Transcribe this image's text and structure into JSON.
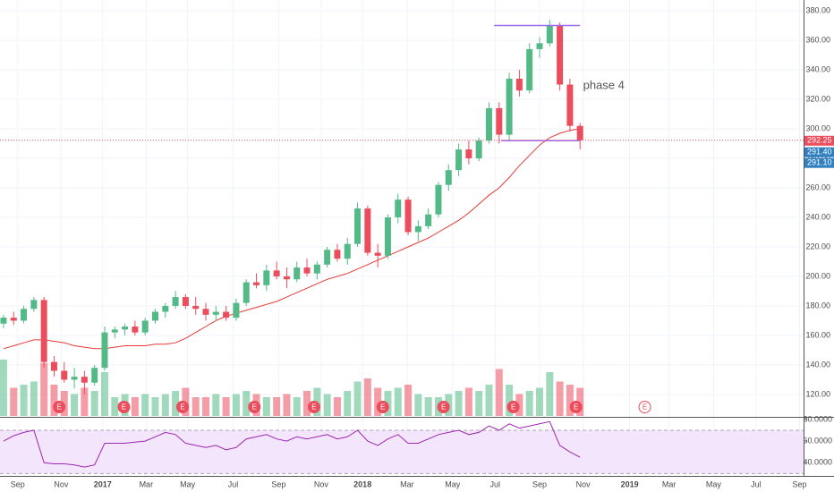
{
  "chart_data": {
    "type": "candlestick",
    "up_color": "#53b987",
    "down_color": "#eb4d5c",
    "open": [
      168,
      172,
      170,
      178,
      184,
      142,
      136,
      130,
      132,
      128,
      138,
      162,
      164,
      166,
      162,
      170,
      176,
      180,
      186,
      180,
      178,
      174,
      176,
      172,
      182,
      196,
      194,
      204,
      200,
      198,
      206,
      202,
      208,
      218,
      212,
      222,
      246,
      216,
      214,
      240,
      252,
      230,
      234,
      242,
      262,
      272,
      286,
      280,
      292,
      314,
      296,
      334,
      326,
      354,
      358,
      370,
      330,
      302
    ],
    "high": [
      174,
      176,
      180,
      186,
      186,
      146,
      142,
      138,
      136,
      140,
      166,
      166,
      168,
      170,
      172,
      178,
      182,
      190,
      188,
      186,
      182,
      180,
      180,
      185,
      198,
      202,
      208,
      210,
      206,
      210,
      212,
      210,
      220,
      222,
      226,
      250,
      248,
      222,
      242,
      256,
      254,
      238,
      246,
      264,
      276,
      290,
      292,
      294,
      318,
      318,
      338,
      340,
      358,
      362,
      374,
      372,
      334,
      304
    ],
    "low": [
      165,
      167,
      168,
      176,
      138,
      132,
      128,
      124,
      120,
      126,
      136,
      158,
      160,
      160,
      160,
      168,
      172,
      178,
      178,
      174,
      170,
      170,
      170,
      170,
      180,
      192,
      190,
      198,
      192,
      196,
      200,
      198,
      206,
      210,
      208,
      220,
      214,
      206,
      212,
      236,
      228,
      224,
      232,
      240,
      258,
      268,
      276,
      278,
      290,
      290,
      292,
      322,
      324,
      348,
      356,
      326,
      298,
      286
    ],
    "close": [
      172,
      170,
      178,
      184,
      142,
      136,
      130,
      132,
      128,
      138,
      162,
      164,
      166,
      162,
      170,
      176,
      180,
      186,
      180,
      178,
      174,
      176,
      172,
      182,
      196,
      194,
      204,
      200,
      198,
      206,
      202,
      208,
      218,
      212,
      222,
      246,
      216,
      214,
      240,
      252,
      230,
      234,
      242,
      262,
      272,
      286,
      280,
      292,
      314,
      296,
      334,
      326,
      354,
      358,
      370,
      330,
      302,
      292.25
    ],
    "volume": [
      90,
      45,
      50,
      55,
      85,
      50,
      40,
      35,
      45,
      40,
      70,
      30,
      35,
      30,
      35,
      30,
      35,
      40,
      45,
      30,
      30,
      35,
      30,
      35,
      40,
      35,
      30,
      30,
      35,
      30,
      40,
      45,
      35,
      30,
      40,
      55,
      60,
      45,
      40,
      45,
      50,
      35,
      30,
      30,
      35,
      40,
      45,
      40,
      50,
      75,
      50,
      35,
      40,
      45,
      70,
      55,
      50,
      45
    ],
    "volume_lim": [
      0,
      100
    ],
    "moving_average": {
      "color": "#e53935",
      "values": [
        151,
        153,
        155,
        157,
        157,
        156,
        155,
        153,
        152,
        151,
        151,
        152,
        153,
        153,
        153,
        154,
        154,
        155,
        158,
        162,
        166,
        170,
        173,
        175,
        177,
        179,
        181,
        183,
        186,
        189,
        192,
        195,
        198,
        200,
        202,
        205,
        208,
        211,
        214,
        217,
        220,
        223,
        226,
        230,
        234,
        238,
        243,
        249,
        255,
        260,
        267,
        275,
        282,
        289,
        294,
        297,
        299,
        300
      ]
    },
    "xlim": [
      -0.35,
      79.1
    ],
    "xticks": [
      {
        "value": 1.4,
        "label": "Sep"
      },
      {
        "value": 5.7,
        "label": "Nov"
      },
      {
        "value": 9.8,
        "label": "2017"
      },
      {
        "value": 14.1,
        "label": "Mar"
      },
      {
        "value": 18.2,
        "label": "May"
      },
      {
        "value": 22.7,
        "label": "Jul"
      },
      {
        "value": 27.2,
        "label": "Sep"
      },
      {
        "value": 31.4,
        "label": "Nov"
      },
      {
        "value": 35.5,
        "label": "2018"
      },
      {
        "value": 39.9,
        "label": "Mar"
      },
      {
        "value": 44.4,
        "label": "May"
      },
      {
        "value": 48.6,
        "label": "Jul"
      },
      {
        "value": 53,
        "label": "Sep"
      },
      {
        "value": 57.3,
        "label": "Nov"
      },
      {
        "value": 61.9,
        "label": "2019"
      },
      {
        "value": 65.8,
        "label": "Mar"
      },
      {
        "value": 70.2,
        "label": "May"
      },
      {
        "value": 74.4,
        "label": "Jul"
      },
      {
        "value": 78.7,
        "label": "Sep"
      }
    ],
    "ylim": [
      104.8,
      387.3
    ],
    "yticks": [
      {
        "value": 120,
        "label": "120.00"
      },
      {
        "value": 140,
        "label": "140.00"
      },
      {
        "value": 160,
        "label": "160.00"
      },
      {
        "value": 180,
        "label": "180.00"
      },
      {
        "value": 200,
        "label": "200.00"
      },
      {
        "value": 220,
        "label": "220.00"
      },
      {
        "value": 240,
        "label": "240.00"
      },
      {
        "value": 260,
        "label": "260.00"
      },
      {
        "value": 280,
        "label": "280.00"
      },
      {
        "value": 300,
        "label": "300.00"
      },
      {
        "value": 320,
        "label": "320.00"
      },
      {
        "value": 340,
        "label": "340.00"
      },
      {
        "value": 360,
        "label": "360.00"
      },
      {
        "value": 380,
        "label": "380.00"
      }
    ],
    "grid": true,
    "price_tags": [
      {
        "value": 292.25,
        "color": "#eb4d5c"
      },
      {
        "value": 291.4,
        "label": "291.40",
        "color": "#2f7fc1"
      },
      {
        "value": 291.1,
        "label": "291.10",
        "color": "#2f7fc1"
      }
    ],
    "levels": [
      {
        "value": 370,
        "from": 48.5,
        "to": 57,
        "color": "#9c6cf0"
      },
      {
        "value": 292,
        "from": 49.2,
        "to": 57,
        "color": "#9c6cf0"
      }
    ],
    "annotation": {
      "text": "phase 4",
      "x": 57.3,
      "y": 329
    },
    "events": {
      "x": [
        5.5,
        11.9,
        17.7,
        24.8,
        30.7,
        37.5,
        43.5,
        50.4,
        56.6,
        63.4
      ],
      "labels": [
        "E",
        "E",
        "E",
        "E",
        "E",
        "E",
        "E",
        "E",
        "E",
        "E"
      ]
    },
    "rsi": {
      "color": "#9c27b0",
      "values": [
        60,
        65,
        68,
        70,
        40,
        39,
        39,
        38,
        36,
        38,
        58,
        58,
        58,
        59,
        60,
        64,
        68,
        66,
        58,
        56,
        54,
        56,
        52,
        54,
        62,
        64,
        66,
        62,
        60,
        64,
        62,
        64,
        66,
        62,
        64,
        70,
        60,
        56,
        62,
        66,
        58,
        58,
        62,
        66,
        68,
        70,
        66,
        68,
        74,
        70,
        76,
        72,
        74,
        76,
        78,
        56,
        50,
        45
      ],
      "ylim": [
        27.8,
        81.6
      ],
      "bands": [
        30,
        70
      ],
      "yticks": [
        {
          "value": 40,
          "label": "40.0000"
        },
        {
          "value": 60,
          "label": "60.0000"
        },
        {
          "value": 80,
          "label": "80.0000"
        }
      ]
    }
  }
}
